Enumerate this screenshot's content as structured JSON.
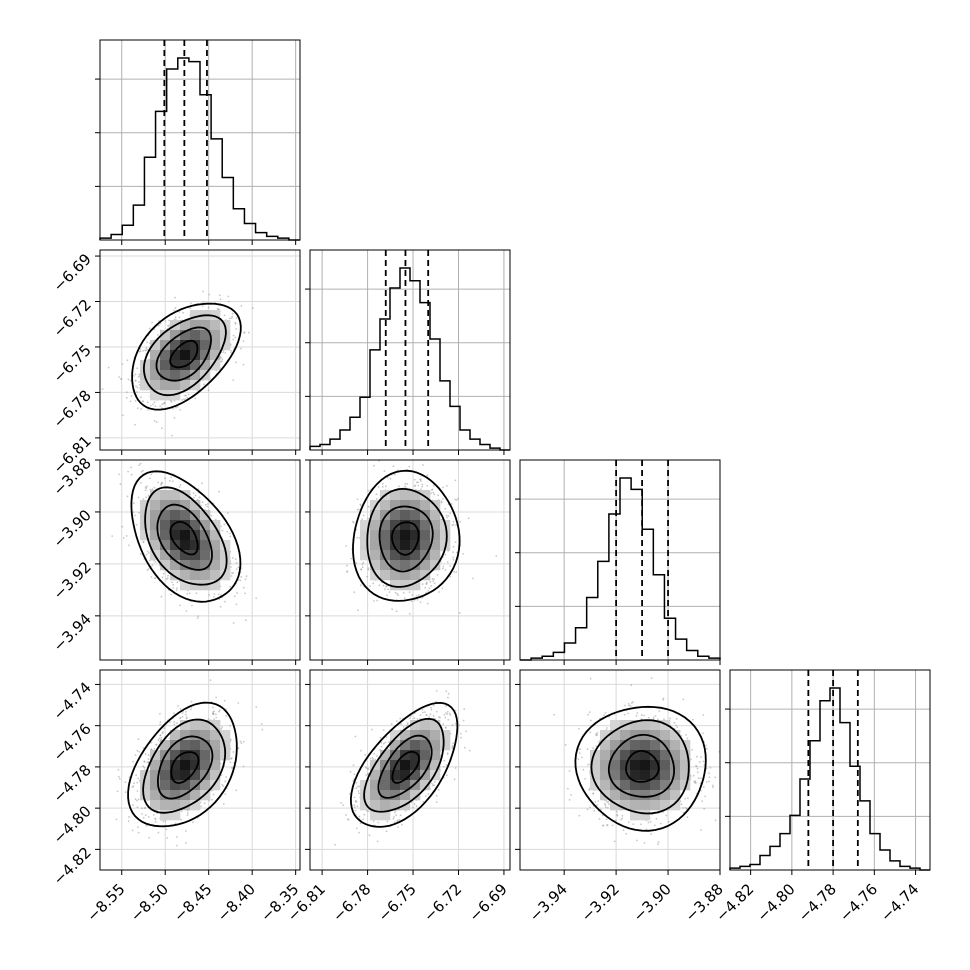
{
  "chart_data": {
    "type": "corner",
    "title": "",
    "parameters": [
      {
        "index": 0,
        "range": [
          -8.575,
          -8.345
        ],
        "ticks": [
          -8.55,
          -8.5,
          -8.45,
          -8.4,
          -8.35
        ],
        "tick_labels": [
          "−8.55",
          "−8.50",
          "−8.45",
          "−8.40",
          "−8.35"
        ],
        "quantiles": [
          -8.501,
          -8.478,
          -8.452
        ],
        "hist_counts": [
          1,
          3,
          8,
          19,
          45,
          70,
          93,
          99,
          97,
          79,
          55,
          34,
          17,
          9,
          4,
          2,
          1,
          0
        ]
      },
      {
        "index": 1,
        "range": [
          -6.818,
          -6.686
        ],
        "ticks": [
          -6.81,
          -6.78,
          -6.75,
          -6.72,
          -6.69
        ],
        "tick_labels": [
          "−6.81",
          "−6.78",
          "−6.75",
          "−6.72",
          "−6.69"
        ],
        "quantiles": [
          -6.768,
          -6.755,
          -6.74
        ],
        "hist_counts": [
          2,
          3,
          6,
          11,
          18,
          29,
          55,
          72,
          89,
          100,
          93,
          81,
          61,
          38,
          24,
          11,
          6,
          3,
          1,
          0
        ]
      },
      {
        "index": 2,
        "range": [
          -3.957,
          -3.88
        ],
        "ticks": [
          -3.94,
          -3.92,
          -3.9,
          -3.88
        ],
        "tick_labels": [
          "−3.94",
          "−3.92",
          "−3.90",
          "−3.88"
        ],
        "quantiles": [
          -3.92,
          -3.91,
          -3.9
        ],
        "hist_counts": [
          0,
          1,
          2,
          4,
          9,
          17,
          33,
          52,
          77,
          96,
          90,
          69,
          45,
          22,
          11,
          5,
          2,
          1
        ]
      },
      {
        "index": 3,
        "range": [
          -4.83,
          -4.733
        ],
        "ticks": [
          -4.82,
          -4.8,
          -4.78,
          -4.76,
          -4.74
        ],
        "tick_labels": [
          "−4.82",
          "−4.80",
          "−4.78",
          "−4.76",
          "−4.74"
        ],
        "quantiles": [
          -4.792,
          -4.78,
          -4.768
        ],
        "hist_counts": [
          1,
          2,
          3,
          8,
          13,
          20,
          30,
          50,
          71,
          93,
          100,
          81,
          57,
          38,
          20,
          11,
          5,
          2,
          1,
          0
        ]
      }
    ],
    "pairs": [
      {
        "row": 1,
        "col": 0,
        "center": [
          -8.478,
          -6.755
        ],
        "sigma": [
          0.025,
          0.014
        ],
        "corr": 0.47
      },
      {
        "row": 2,
        "col": 0,
        "center": [
          -8.478,
          -3.91
        ],
        "sigma": [
          0.025,
          0.01
        ],
        "corr": -0.43
      },
      {
        "row": 2,
        "col": 1,
        "center": [
          -6.755,
          -3.91
        ],
        "sigma": [
          0.014,
          0.01
        ],
        "corr": 0.05
      },
      {
        "row": 3,
        "col": 0,
        "center": [
          -8.478,
          -4.78
        ],
        "sigma": [
          0.025,
          0.012
        ],
        "corr": 0.4
      },
      {
        "row": 3,
        "col": 1,
        "center": [
          -6.755,
          -4.78
        ],
        "sigma": [
          0.014,
          0.012
        ],
        "corr": 0.58
      },
      {
        "row": 3,
        "col": 2,
        "center": [
          -3.91,
          -4.78
        ],
        "sigma": [
          0.01,
          0.012
        ],
        "corr": 0.0
      }
    ],
    "contour_levels_sigma": [
      0.5,
      1.0,
      1.5,
      2.0
    ],
    "grid": true,
    "colors": {
      "axes": "#000000",
      "points": "#9a9a9a",
      "hist": "#000000",
      "grid": "#b0b0b0"
    }
  }
}
